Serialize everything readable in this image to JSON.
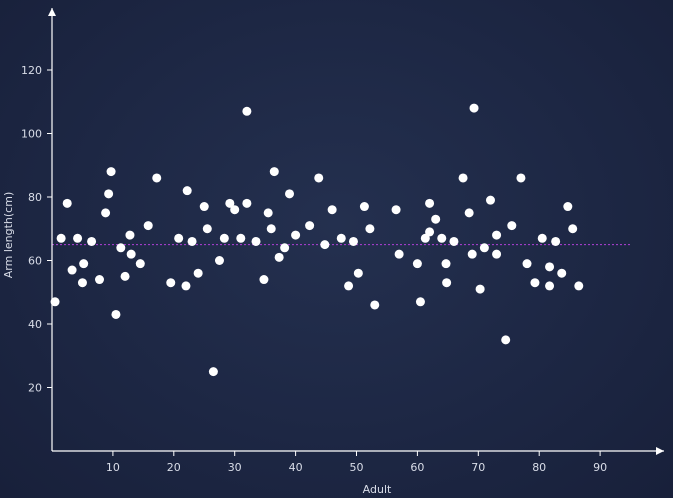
{
  "chart_data": {
    "type": "scatter",
    "title": "",
    "xlabel": "Adult",
    "ylabel": "Arm length(cm)",
    "xlim": [
      0,
      100
    ],
    "ylim": [
      0,
      130
    ],
    "x_ticks": [
      10,
      20,
      30,
      40,
      50,
      60,
      70,
      80,
      90
    ],
    "y_ticks": [
      20,
      40,
      60,
      80,
      100,
      120
    ],
    "grid": false,
    "reference_line": {
      "y": 65,
      "style": "dotted",
      "color": "#b03fd8"
    },
    "point_color": "#ffffff",
    "axis_color": "#ffffff",
    "points": [
      [
        0.5,
        47
      ],
      [
        1.5,
        67
      ],
      [
        2.5,
        78
      ],
      [
        3.3,
        57
      ],
      [
        4.2,
        67
      ],
      [
        5,
        53
      ],
      [
        5.2,
        59
      ],
      [
        6.5,
        66
      ],
      [
        7.8,
        54
      ],
      [
        8.8,
        75
      ],
      [
        9.3,
        81
      ],
      [
        9.7,
        88
      ],
      [
        10.5,
        43
      ],
      [
        11.3,
        64
      ],
      [
        12,
        55
      ],
      [
        12.8,
        68
      ],
      [
        13,
        62
      ],
      [
        14.5,
        59
      ],
      [
        15.8,
        71
      ],
      [
        17.2,
        86
      ],
      [
        19.5,
        53
      ],
      [
        20.8,
        67
      ],
      [
        22,
        52
      ],
      [
        22.2,
        82
      ],
      [
        23,
        66
      ],
      [
        24,
        56
      ],
      [
        25,
        77
      ],
      [
        25.5,
        70
      ],
      [
        26.5,
        25
      ],
      [
        27.5,
        60
      ],
      [
        28.3,
        67
      ],
      [
        29.2,
        78
      ],
      [
        30,
        76
      ],
      [
        31,
        67
      ],
      [
        32,
        107
      ],
      [
        32,
        78
      ],
      [
        33.5,
        66
      ],
      [
        34.8,
        54
      ],
      [
        35.5,
        75
      ],
      [
        36,
        70
      ],
      [
        36.5,
        88
      ],
      [
        37.3,
        61
      ],
      [
        38.2,
        64
      ],
      [
        39,
        81
      ],
      [
        40,
        68
      ],
      [
        42.3,
        71
      ],
      [
        43.8,
        86
      ],
      [
        44.8,
        65
      ],
      [
        46,
        76
      ],
      [
        47.5,
        67
      ],
      [
        48.7,
        52
      ],
      [
        49.5,
        66
      ],
      [
        50.3,
        56
      ],
      [
        51.3,
        77
      ],
      [
        52.2,
        70
      ],
      [
        53,
        46
      ],
      [
        56.5,
        76
      ],
      [
        57,
        62
      ],
      [
        60,
        59
      ],
      [
        60.5,
        47
      ],
      [
        61.3,
        67
      ],
      [
        62,
        69
      ],
      [
        62,
        78
      ],
      [
        63,
        73
      ],
      [
        64,
        67
      ],
      [
        64.7,
        59
      ],
      [
        64.8,
        53
      ],
      [
        66,
        66
      ],
      [
        67.5,
        86
      ],
      [
        68.5,
        75
      ],
      [
        69,
        62
      ],
      [
        69.3,
        108
      ],
      [
        70.3,
        51
      ],
      [
        71,
        64
      ],
      [
        72,
        79
      ],
      [
        73,
        68
      ],
      [
        73,
        62
      ],
      [
        74.5,
        35
      ],
      [
        75.5,
        71
      ],
      [
        77,
        86
      ],
      [
        78,
        59
      ],
      [
        79.3,
        53
      ],
      [
        80.5,
        67
      ],
      [
        81.7,
        58
      ],
      [
        81.7,
        52
      ],
      [
        82.7,
        66
      ],
      [
        83.7,
        56
      ],
      [
        84.7,
        77
      ],
      [
        85.5,
        70
      ],
      [
        86.5,
        52
      ]
    ]
  }
}
